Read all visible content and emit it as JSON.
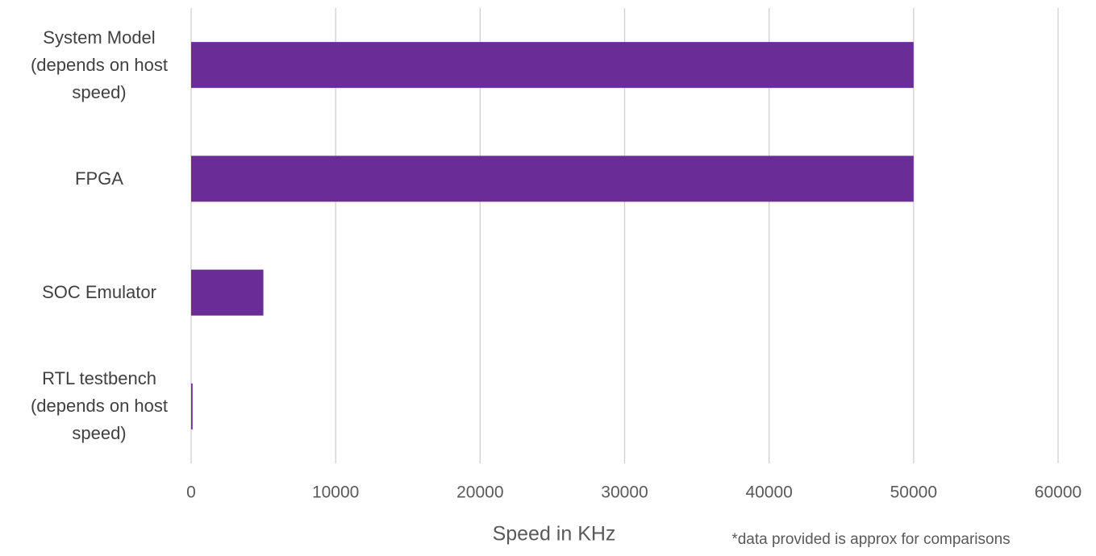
{
  "chart_data": {
    "type": "hbar",
    "categories": [
      "System Model (depends on host speed)",
      "FPGA",
      "SOC Emulator",
      "RTL testbench (depends on host speed)"
    ],
    "values": [
      50000,
      50000,
      5000,
      100
    ],
    "color": "#6a2c96",
    "xlabel": "Speed in KHz",
    "note": "*data provided is approx for comparisons",
    "xlim": [
      0,
      60000
    ],
    "xticks": [
      0,
      10000,
      20000,
      30000,
      40000,
      50000,
      60000
    ],
    "grid": true
  }
}
